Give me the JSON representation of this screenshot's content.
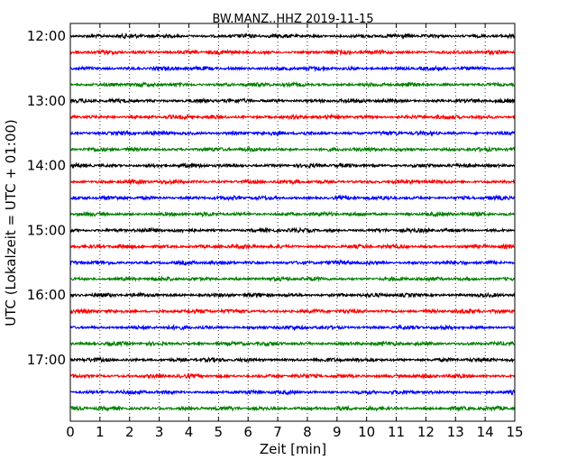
{
  "chart_data": {
    "type": "line",
    "title": "BW.MANZ..HHZ 2019-11-15",
    "xlabel": "Zeit  [min]",
    "ylabel": "UTC (Lokalzeit = UTC + 01:00)",
    "xlim": [
      0,
      15
    ],
    "x_ticks": [
      "0",
      "1",
      "2",
      "3",
      "4",
      "5",
      "6",
      "7",
      "8",
      "9",
      "10",
      "11",
      "12",
      "13",
      "14",
      "15"
    ],
    "y_tick_labels": [
      "12:00",
      "13:00",
      "14:00",
      "15:00",
      "16:00",
      "17:00"
    ],
    "start_time": "12:00",
    "trace_interval_minutes": 15,
    "trace_colors": [
      "#000000",
      "#ff0000",
      "#0000ff",
      "#008000"
    ],
    "grid": "vertical dotted lines at each minute",
    "series": [
      {
        "start": "12:00",
        "color": "#000000"
      },
      {
        "start": "12:15",
        "color": "#ff0000"
      },
      {
        "start": "12:30",
        "color": "#0000ff"
      },
      {
        "start": "12:45",
        "color": "#008000"
      },
      {
        "start": "13:00",
        "color": "#000000"
      },
      {
        "start": "13:15",
        "color": "#ff0000"
      },
      {
        "start": "13:30",
        "color": "#0000ff"
      },
      {
        "start": "13:45",
        "color": "#008000"
      },
      {
        "start": "14:00",
        "color": "#000000"
      },
      {
        "start": "14:15",
        "color": "#ff0000"
      },
      {
        "start": "14:30",
        "color": "#0000ff"
      },
      {
        "start": "14:45",
        "color": "#008000"
      },
      {
        "start": "15:00",
        "color": "#000000"
      },
      {
        "start": "15:15",
        "color": "#ff0000"
      },
      {
        "start": "15:30",
        "color": "#0000ff"
      },
      {
        "start": "15:45",
        "color": "#008000"
      },
      {
        "start": "16:00",
        "color": "#000000"
      },
      {
        "start": "16:15",
        "color": "#ff0000"
      },
      {
        "start": "16:30",
        "color": "#0000ff"
      },
      {
        "start": "16:45",
        "color": "#008000"
      },
      {
        "start": "17:00",
        "color": "#000000"
      },
      {
        "start": "17:15",
        "color": "#ff0000"
      },
      {
        "start": "17:30",
        "color": "#0000ff"
      },
      {
        "start": "17:45",
        "color": "#008000"
      }
    ]
  }
}
